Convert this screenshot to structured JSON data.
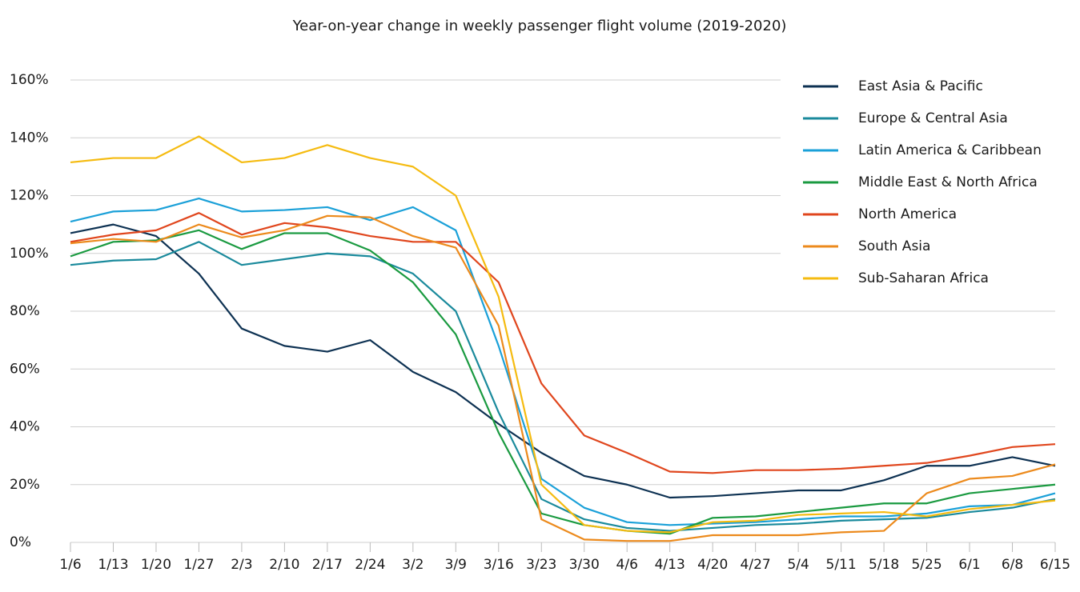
{
  "chart_data": {
    "type": "line",
    "title": "Year-on-year change in weekly passenger flight volume (2019-2020)",
    "categories": [
      "1/6",
      "1/13",
      "1/20",
      "1/27",
      "2/3",
      "2/10",
      "2/17",
      "2/24",
      "3/2",
      "3/9",
      "3/16",
      "3/23",
      "3/30",
      "4/6",
      "4/13",
      "4/20",
      "4/27",
      "5/4",
      "5/11",
      "5/18",
      "5/25",
      "6/1",
      "6/8",
      "6/15"
    ],
    "ylim": [
      0,
      160
    ],
    "yticks": [
      {
        "value": 0,
        "label": "0%"
      },
      {
        "value": 20,
        "label": "20%"
      },
      {
        "value": 40,
        "label": "40%"
      },
      {
        "value": 60,
        "label": "60%"
      },
      {
        "value": 80,
        "label": "80%"
      },
      {
        "value": 100,
        "label": "100%"
      },
      {
        "value": 120,
        "label": "120%"
      },
      {
        "value": 140,
        "label": "140%"
      },
      {
        "value": 160,
        "label": "160%"
      }
    ],
    "grid": true,
    "legend": "right",
    "series": [
      {
        "name": "East Asia & Pacific",
        "color": "#0d3152",
        "values": [
          107,
          110,
          106,
          93,
          74,
          68,
          66,
          70,
          59,
          52,
          41,
          31,
          23,
          20,
          15.5,
          16,
          17,
          18,
          18,
          21.5,
          26.5,
          26.5,
          29.5,
          26.5
        ]
      },
      {
        "name": "Europe & Central Asia",
        "color": "#1a8a9c",
        "values": [
          96,
          97.5,
          98,
          104,
          96,
          98,
          100,
          99,
          93,
          80,
          45,
          15,
          8,
          5,
          4,
          5,
          6,
          6.5,
          7.5,
          8,
          8.5,
          10.5,
          12,
          15
        ]
      },
      {
        "name": "Latin America & Caribbean",
        "color": "#1aa0d8",
        "values": [
          111,
          114.5,
          115,
          119,
          114.5,
          115,
          116,
          111.5,
          116,
          108,
          68,
          22,
          12,
          7,
          6,
          6.5,
          7,
          8,
          9,
          9,
          10,
          12.5,
          13,
          17
        ]
      },
      {
        "name": "Middle East & North Africa",
        "color": "#1a9a40",
        "values": [
          99,
          104,
          104.5,
          108,
          101.5,
          107,
          107,
          101,
          90,
          72,
          38,
          10,
          6,
          4,
          3,
          8.5,
          9,
          10.5,
          12,
          13.5,
          13.5,
          17,
          18.5,
          20
        ]
      },
      {
        "name": "North America",
        "color": "#e0461d",
        "values": [
          104,
          106.5,
          108,
          114,
          106.5,
          110.5,
          109,
          106,
          104,
          104,
          90,
          55,
          37,
          31,
          24.5,
          24,
          25,
          25,
          25.5,
          26.5,
          27.5,
          30,
          33,
          34
        ]
      },
      {
        "name": "South Asia",
        "color": "#ec8a1c",
        "values": [
          103.5,
          105,
          104,
          110,
          105.5,
          108,
          113,
          112.5,
          106,
          102,
          75,
          8,
          1,
          0.5,
          0.5,
          2.5,
          2.5,
          2.5,
          3.5,
          4,
          17,
          22,
          23,
          27
        ]
      },
      {
        "name": "Sub-Saharan Africa",
        "color": "#f5bb10",
        "values": [
          131.5,
          133,
          133,
          140.5,
          131.5,
          133,
          137.5,
          133,
          130,
          120,
          85,
          20,
          6,
          4,
          3.5,
          7,
          7.5,
          9.5,
          10,
          10.5,
          9,
          11.5,
          13,
          14.5
        ]
      }
    ]
  }
}
